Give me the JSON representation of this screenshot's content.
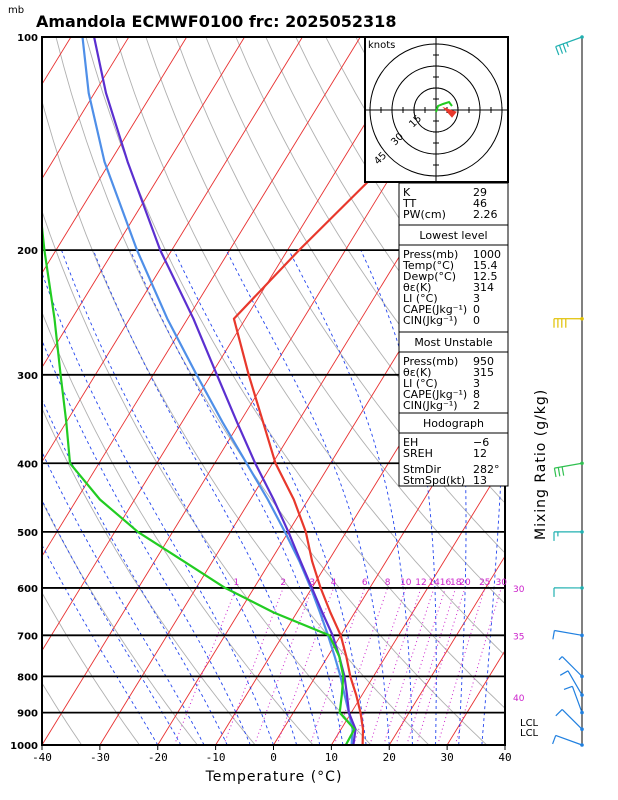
{
  "title": "Amandola ECMWF0100  frc: 2025052318",
  "pressure_unit": "mb",
  "hodograph": {
    "unit_label": "knots",
    "ring_labels": [
      "15",
      "30",
      "45"
    ]
  },
  "right_axis_label": "Mixing Ratio  (g/kg)",
  "lcl_labels": [
    "LCL",
    "LCL"
  ],
  "panels": {
    "indices": [
      {
        "label": "K",
        "value": "29"
      },
      {
        "label": "TT",
        "value": "46"
      },
      {
        "label": "PW(cm)",
        "value": "2.26"
      }
    ],
    "lowest_level": {
      "header": "Lowest level",
      "rows": [
        {
          "label": "Press(mb)",
          "value": "1000"
        },
        {
          "label": "Temp(°C)",
          "value": "15.4"
        },
        {
          "label": "Dewp(°C)",
          "value": "12.5"
        },
        {
          "label": "θε(K)",
          "value": "314"
        },
        {
          "label": "LI (°C)",
          "value": "3"
        },
        {
          "label": "CAPE(Jkg⁻¹)",
          "value": "0"
        },
        {
          "label": "CIN(Jkg⁻¹)",
          "value": "0"
        }
      ]
    },
    "most_unstable": {
      "header": "Most Unstable",
      "rows": [
        {
          "label": "Press(mb)",
          "value": "950"
        },
        {
          "label": "θε(K)",
          "value": "315"
        },
        {
          "label": "LI (°C)",
          "value": "3"
        },
        {
          "label": "CAPE(Jkg⁻¹)",
          "value": "8"
        },
        {
          "label": "CIN(Jkg⁻¹)",
          "value": "2"
        }
      ]
    },
    "hodograph_params": {
      "header": "Hodograph",
      "rows": [
        {
          "label": "EH",
          "value": "−6"
        },
        {
          "label": "SREH",
          "value": "12"
        },
        {
          "label": "StmDir",
          "value": "282°"
        },
        {
          "label": "StmSpd(kt)",
          "value": "13"
        }
      ]
    }
  },
  "colors": {
    "temperature": "#e8382c",
    "dewpoint": "#22cc22",
    "parcel": "#4f8fe8",
    "wetbulb": "#5b2fd0",
    "isotherm": "#e83030",
    "dry_adiabat": "#b0b0b0",
    "moist_adiabat": "#2244ee",
    "mixing_ratio": "#cc22cc",
    "hodo_ring": "#000000"
  },
  "chart_data": {
    "type": "line",
    "chart_kind": "skew-T log-p sounding",
    "xlabel": "Temperature (°C)",
    "ylabel": "",
    "x_ticks": [
      -40,
      -30,
      -20,
      -10,
      0,
      10,
      20,
      30,
      40
    ],
    "p_ticks": [
      100,
      200,
      300,
      400,
      500,
      600,
      700,
      800,
      900,
      1000
    ],
    "xlim": [
      -40,
      40
    ],
    "plim": [
      1000,
      100
    ],
    "y_scale": "log",
    "skew_deg_per_decade": 75,
    "mixing_ratio_labels": [
      "1",
      "2",
      "3",
      "4",
      "6",
      "8",
      "10",
      "12",
      "14",
      "16",
      "18",
      "20",
      "25",
      "30"
    ],
    "mixing_ratio_values": [
      1,
      2,
      3,
      4,
      6,
      8,
      10,
      12,
      14,
      16,
      18,
      20,
      25,
      30
    ],
    "theta_e_labels": [
      {
        "text": "30",
        "p": 600
      },
      {
        "text": "35",
        "p": 700
      },
      {
        "text": "40",
        "p": 855
      }
    ],
    "series": [
      {
        "name": "Temperature",
        "p": [
          1000,
          950,
          900,
          850,
          800,
          750,
          700,
          650,
          600,
          550,
          500,
          450,
          400,
          350,
          300,
          250,
          200,
          150,
          120,
          100
        ],
        "t": [
          15.4,
          13.8,
          11.6,
          9.0,
          6.0,
          3.2,
          0.0,
          -4.2,
          -8.5,
          -12.8,
          -17.0,
          -22.5,
          -29.5,
          -36.0,
          -43.5,
          -52.0,
          -48.0,
          -42.0,
          -38.0,
          -34.0
        ]
      },
      {
        "name": "Dewpoint",
        "p": [
          1000,
          950,
          900,
          850,
          800,
          750,
          700,
          650,
          600,
          550,
          500,
          450,
          400,
          350,
          300,
          250,
          200,
          150,
          100
        ],
        "t": [
          12.5,
          12.3,
          8.0,
          6.5,
          4.8,
          2.0,
          -2.0,
          -14.0,
          -25.0,
          -35.0,
          -46.0,
          -56.0,
          -65.0,
          -70.0,
          -76.0,
          -83.0,
          -92.0,
          -103.0,
          -125.0
        ]
      },
      {
        "name": "Parcel",
        "p": [
          1000,
          950,
          900,
          850,
          800,
          750,
          700,
          650,
          600,
          550,
          500,
          450,
          400,
          350,
          300,
          250,
          200,
          150,
          120,
          100
        ],
        "t": [
          13.5,
          12.0,
          9.6,
          7.0,
          4.3,
          1.2,
          -2.2,
          -6.0,
          -10.2,
          -15.0,
          -20.6,
          -27.0,
          -34.5,
          -43.0,
          -52.5,
          -63.5,
          -76.0,
          -91.0,
          -101.0,
          -108.0
        ]
      },
      {
        "name": "Wet-bulb",
        "p": [
          1000,
          950,
          900,
          850,
          800,
          750,
          700,
          650,
          600,
          550,
          500,
          450,
          400,
          350,
          300,
          250,
          200,
          150,
          120,
          100
        ],
        "t": [
          13.8,
          12.5,
          9.6,
          7.4,
          5.0,
          2.0,
          -1.4,
          -5.6,
          -10.0,
          -14.8,
          -20.0,
          -26.0,
          -33.0,
          -40.5,
          -49.0,
          -59.0,
          -72.0,
          -87.0,
          -98.0,
          -106.0
        ]
      }
    ],
    "wind_barbs": [
      {
        "p": 100,
        "dir": 250,
        "kt": 35,
        "color": "#20b0b0"
      },
      {
        "p": 250,
        "dir": 270,
        "kt": 40,
        "color": "#e0c000"
      },
      {
        "p": 400,
        "dir": 260,
        "kt": 30,
        "color": "#30c050"
      },
      {
        "p": 500,
        "dir": 270,
        "kt": 15,
        "color": "#20b0b0"
      },
      {
        "p": 600,
        "dir": 270,
        "kt": 10,
        "color": "#20b0b0"
      },
      {
        "p": 700,
        "dir": 280,
        "kt": 10,
        "color": "#2080e0"
      },
      {
        "p": 800,
        "dir": 315,
        "kt": 5,
        "color": "#2080e0"
      },
      {
        "p": 850,
        "dir": 330,
        "kt": 10,
        "color": "#2080e0"
      },
      {
        "p": 900,
        "dir": 340,
        "kt": 10,
        "color": "#2080e0"
      },
      {
        "p": 950,
        "dir": 315,
        "kt": 10,
        "color": "#2080e0"
      },
      {
        "p": 1000,
        "dir": 290,
        "kt": 10,
        "color": "#2080e0"
      }
    ]
  }
}
